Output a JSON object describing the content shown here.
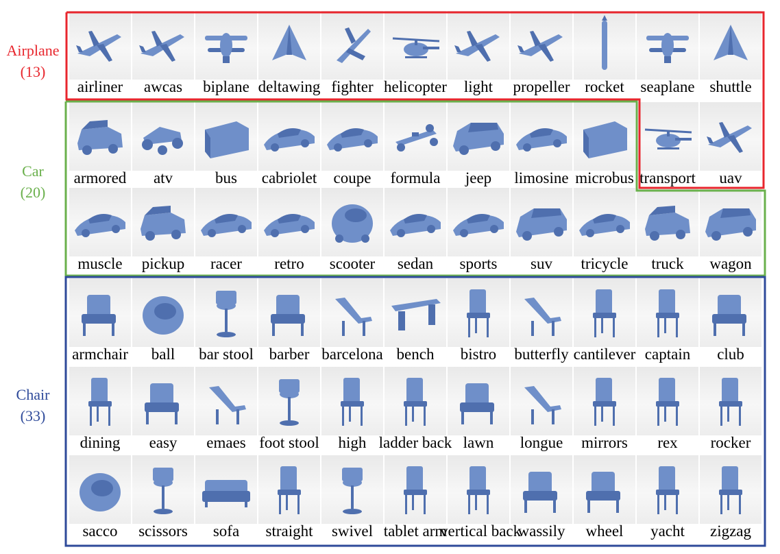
{
  "colors": {
    "airplane": "#e8262d",
    "car": "#6ab04c",
    "chair": "#2e4a9a",
    "model": "#6f8fc9",
    "model_dark": "#4f6fae"
  },
  "groups": [
    {
      "name": "Airplane",
      "count": "(13)"
    },
    {
      "name": "Car",
      "count": "(20)"
    },
    {
      "name": "Chair",
      "count": "(33)"
    }
  ],
  "rows": [
    {
      "items": [
        {
          "label": "airliner",
          "icon": "plane"
        },
        {
          "label": "awcas",
          "icon": "plane"
        },
        {
          "label": "biplane",
          "icon": "biplane"
        },
        {
          "label": "deltawing",
          "icon": "delta"
        },
        {
          "label": "fighter",
          "icon": "jet"
        },
        {
          "label": "helicopter",
          "icon": "heli"
        },
        {
          "label": "light",
          "icon": "plane"
        },
        {
          "label": "propeller",
          "icon": "plane"
        },
        {
          "label": "rocket",
          "icon": "rocket"
        },
        {
          "label": "seaplane",
          "icon": "biplane"
        },
        {
          "label": "shuttle",
          "icon": "delta"
        }
      ]
    },
    {
      "items": [
        {
          "label": "armored",
          "icon": "truck"
        },
        {
          "label": "atv",
          "icon": "atv"
        },
        {
          "label": "bus",
          "icon": "bus"
        },
        {
          "label": "cabriolet",
          "icon": "car"
        },
        {
          "label": "coupe",
          "icon": "car"
        },
        {
          "label": "formula",
          "icon": "formula"
        },
        {
          "label": "jeep",
          "icon": "suv"
        },
        {
          "label": "limosine",
          "icon": "car"
        },
        {
          "label": "microbus",
          "icon": "bus"
        },
        {
          "label": "transport",
          "icon": "heli"
        },
        {
          "label": "uav",
          "icon": "plane"
        }
      ]
    },
    {
      "items": [
        {
          "label": "muscle",
          "icon": "car"
        },
        {
          "label": "pickup",
          "icon": "truck"
        },
        {
          "label": "racer",
          "icon": "car"
        },
        {
          "label": "retro",
          "icon": "car"
        },
        {
          "label": "scooter",
          "icon": "bubble"
        },
        {
          "label": "sedan",
          "icon": "car"
        },
        {
          "label": "sports",
          "icon": "car"
        },
        {
          "label": "suv",
          "icon": "suv"
        },
        {
          "label": "tricycle",
          "icon": "car"
        },
        {
          "label": "truck",
          "icon": "truck"
        },
        {
          "label": "wagon",
          "icon": "suv"
        }
      ]
    },
    {
      "items": [
        {
          "label": "armchair",
          "icon": "armchair"
        },
        {
          "label": "ball",
          "icon": "ball"
        },
        {
          "label": "bar stool",
          "icon": "stool"
        },
        {
          "label": "barber",
          "icon": "armchair"
        },
        {
          "label": "barcelona",
          "icon": "lounge"
        },
        {
          "label": "bench",
          "icon": "bench"
        },
        {
          "label": "bistro",
          "icon": "chair"
        },
        {
          "label": "butterfly",
          "icon": "lounge"
        },
        {
          "label": "cantilever",
          "icon": "chair"
        },
        {
          "label": "captain",
          "icon": "chair"
        },
        {
          "label": "club",
          "icon": "armchair"
        }
      ]
    },
    {
      "items": [
        {
          "label": "dining",
          "icon": "chair"
        },
        {
          "label": "easy",
          "icon": "armchair"
        },
        {
          "label": "emaes",
          "icon": "lounge"
        },
        {
          "label": "foot stool",
          "icon": "stool"
        },
        {
          "label": "high",
          "icon": "chair"
        },
        {
          "label": "ladder back",
          "icon": "chair"
        },
        {
          "label": "lawn",
          "icon": "armchair"
        },
        {
          "label": "longue",
          "icon": "lounge"
        },
        {
          "label": "mirrors",
          "icon": "chair"
        },
        {
          "label": "rex",
          "icon": "chair"
        },
        {
          "label": "rocker",
          "icon": "chair"
        }
      ]
    },
    {
      "items": [
        {
          "label": "sacco",
          "icon": "ball"
        },
        {
          "label": "scissors",
          "icon": "stool"
        },
        {
          "label": "sofa",
          "icon": "sofa"
        },
        {
          "label": "straight",
          "icon": "chair"
        },
        {
          "label": "swivel",
          "icon": "stool"
        },
        {
          "label": "tablet arm",
          "icon": "chair"
        },
        {
          "label": "vertical back",
          "icon": "chair"
        },
        {
          "label": "wassily",
          "icon": "armchair"
        },
        {
          "label": "wheel",
          "icon": "armchair"
        },
        {
          "label": "yacht",
          "icon": "chair"
        },
        {
          "label": "zigzag",
          "icon": "chair"
        }
      ]
    }
  ]
}
